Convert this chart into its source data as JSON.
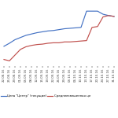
{
  "x_labels": [
    "22.08.16",
    "25.08.16",
    "29.08.16",
    "01.09.16",
    "05.09.16",
    "08.09.16",
    "12.09.16",
    "15.09.16",
    "19.09.16",
    "22.09.16",
    "26.09.16",
    "29.09.16",
    "03.10.16",
    "06.10.16",
    "10.10.16",
    "13.10.16",
    "17.10.16",
    "20.10.16",
    "24.10.16",
    "27.10.16",
    "31.10.16"
  ],
  "blue_values": [
    5.5,
    6.2,
    7.0,
    7.5,
    8.0,
    8.3,
    8.6,
    8.8,
    9.0,
    9.1,
    9.3,
    9.5,
    9.6,
    9.7,
    9.8,
    13.5,
    13.5,
    13.5,
    12.8,
    12.5,
    12.3
  ],
  "red_values": [
    2.5,
    2.2,
    3.5,
    4.8,
    5.4,
    5.7,
    5.9,
    6.0,
    6.2,
    6.3,
    6.3,
    6.5,
    6.5,
    6.6,
    6.7,
    6.8,
    9.8,
    10.0,
    12.2,
    12.5,
    12.3
  ],
  "blue_color": "#4472c4",
  "red_color": "#c0504d",
  "legend_blue": "Цена \"Центр\" (текущие)",
  "legend_red": "Средневзвешенная це",
  "bg_color": "#ffffff",
  "grid_color": "#d9d9d9",
  "n_points": 21,
  "tick_fontsize": 2.8,
  "legend_fontsize": 2.8,
  "linewidth": 0.85
}
